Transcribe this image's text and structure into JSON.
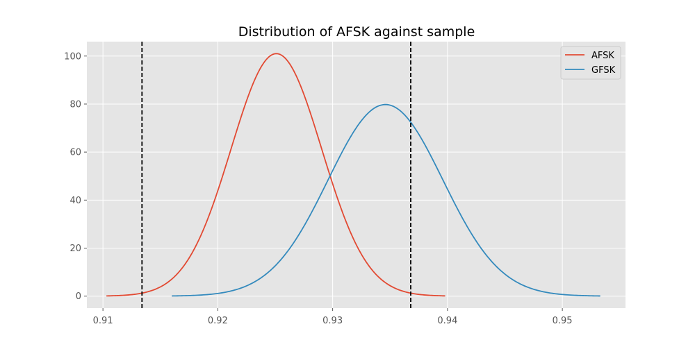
{
  "chart_data": {
    "type": "line",
    "title": "Distribution of AFSK against sample",
    "xlabel": "",
    "ylabel": "",
    "xlim": [
      0.9086,
      0.9555
    ],
    "ylim": [
      -5,
      106
    ],
    "x_ticks": [
      0.91,
      0.92,
      0.93,
      0.94,
      0.95
    ],
    "x_tick_labels": [
      "0.91",
      "0.92",
      "0.93",
      "0.94",
      "0.95"
    ],
    "y_ticks": [
      0,
      20,
      40,
      60,
      80,
      100
    ],
    "y_tick_labels": [
      "0",
      "20",
      "40",
      "60",
      "80",
      "100"
    ],
    "grid": true,
    "legend_position": "top-right",
    "series": [
      {
        "name": "AFSK",
        "color": "#e24a33",
        "distribution": "normal",
        "mean": 0.9251,
        "std": 0.00395,
        "x_range": [
          0.9103,
          0.9398
        ],
        "peak": 101.0
      },
      {
        "name": "GFSK",
        "color": "#348abd",
        "distribution": "normal",
        "mean": 0.9346,
        "std": 0.005,
        "x_range": [
          0.916,
          0.9533
        ],
        "peak": 79.8
      }
    ],
    "vertical_lines": [
      {
        "x": 0.9134,
        "style": "dashed",
        "color": "#000000"
      },
      {
        "x": 0.9368,
        "style": "dashed",
        "color": "#000000"
      }
    ]
  },
  "colors": {
    "plot_background": "#e5e5e5",
    "grid": "#ffffff",
    "figure_background": "#ffffff"
  }
}
